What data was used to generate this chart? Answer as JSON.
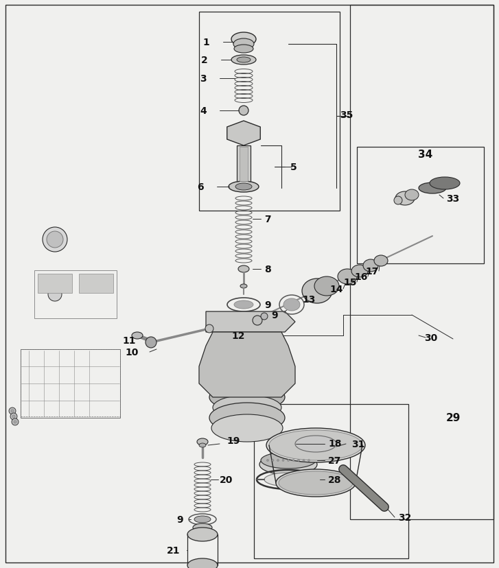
{
  "bg_color": "#f0f0ee",
  "line_color": "#2a2a2a",
  "part_color": "#888888",
  "part_fill": "#d0d0d0",
  "figsize": [
    7.27,
    8.29
  ],
  "dpi": 100
}
